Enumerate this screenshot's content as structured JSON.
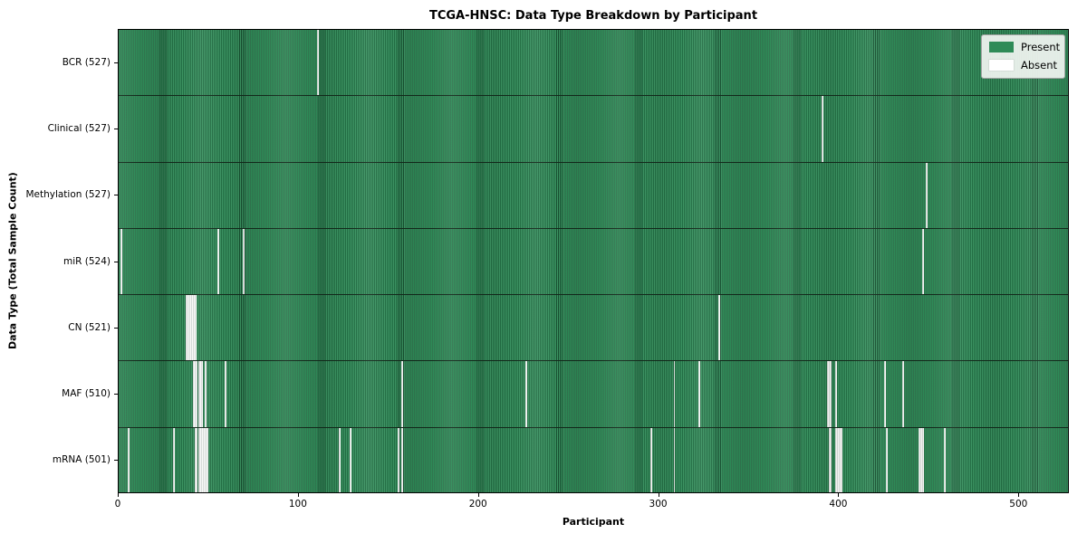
{
  "title": "TCGA-HNSC: Data Type Breakdown by Participant",
  "x_axis": {
    "label": "Participant",
    "ticks": [
      0,
      100,
      200,
      300,
      400,
      500
    ]
  },
  "y_axis": {
    "label": "Data Type (Total Sample Count)"
  },
  "legend": {
    "present_label": "Present",
    "absent_label": "Absent"
  },
  "colors": {
    "present": "#2e8b57",
    "absent": "#ffffff",
    "cell_edge": "#123a22",
    "legend_bg": "#f2f5f2"
  },
  "chart_data": {
    "type": "heatmap",
    "title": "TCGA-HNSC: Data Type Breakdown by Participant",
    "xlabel": "Participant",
    "ylabel": "Data Type (Total Sample Count)",
    "legend_entries": [
      "Present",
      "Absent"
    ],
    "legend_position": "upper right",
    "x_range": [
      0,
      528
    ],
    "x_ticks": [
      0,
      100,
      200,
      300,
      400,
      500
    ],
    "n_participants": 528,
    "value_encoding": {
      "present": "seagreen cell",
      "absent": "white cell"
    },
    "rows": [
      {
        "label": "BCR (527)",
        "data_type": "BCR",
        "present_count": 527,
        "absent_participants": [
          110
        ]
      },
      {
        "label": "Clinical (527)",
        "data_type": "Clinical",
        "present_count": 527,
        "absent_participants": [
          390
        ]
      },
      {
        "label": "Methylation (527)",
        "data_type": "Methylation",
        "present_count": 527,
        "absent_participants": [
          448
        ]
      },
      {
        "label": "miR (524)",
        "data_type": "miR",
        "present_count": 524,
        "absent_participants": [
          1,
          55,
          69,
          446
        ]
      },
      {
        "label": "CN (521)",
        "data_type": "CN",
        "present_count": 521,
        "absent_participants": [
          37,
          38,
          39,
          40,
          41,
          42,
          333
        ]
      },
      {
        "label": "MAF (510)",
        "data_type": "MAF",
        "present_count": 510,
        "absent_participants": [
          41,
          42,
          43,
          44,
          45,
          46,
          48,
          59,
          157,
          226,
          308,
          322,
          393,
          394,
          395,
          398,
          425,
          435
        ]
      },
      {
        "label": "mRNA (501)",
        "data_type": "mRNA",
        "present_count": 501,
        "absent_participants": [
          5,
          30,
          42,
          43,
          44,
          45,
          46,
          47,
          48,
          49,
          122,
          128,
          155,
          157,
          295,
          308,
          394,
          395,
          398,
          399,
          400,
          401,
          426,
          444,
          445,
          446,
          458
        ]
      }
    ]
  }
}
